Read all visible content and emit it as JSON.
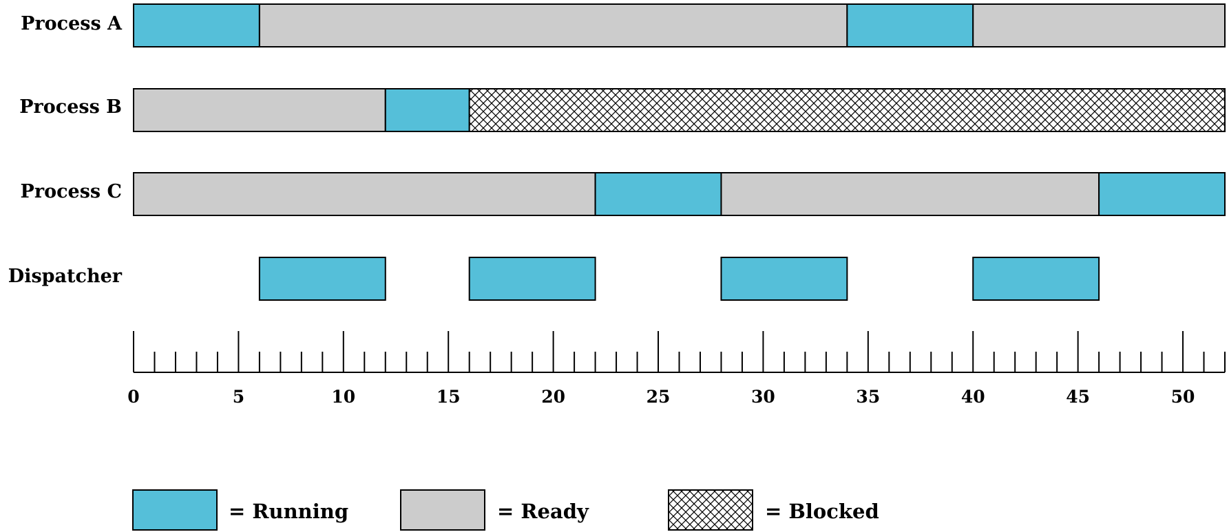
{
  "chart_data": {
    "type": "timeline",
    "rows": [
      {
        "label": "Process A",
        "segments": [
          {
            "start": 0,
            "end": 6,
            "state": "running"
          },
          {
            "start": 6,
            "end": 34,
            "state": "ready"
          },
          {
            "start": 34,
            "end": 40,
            "state": "running"
          },
          {
            "start": 40,
            "end": 52,
            "state": "ready"
          }
        ]
      },
      {
        "label": "Process B",
        "segments": [
          {
            "start": 0,
            "end": 12,
            "state": "ready"
          },
          {
            "start": 12,
            "end": 16,
            "state": "running"
          },
          {
            "start": 16,
            "end": 52,
            "state": "blocked"
          }
        ]
      },
      {
        "label": "Process C",
        "segments": [
          {
            "start": 0,
            "end": 22,
            "state": "ready"
          },
          {
            "start": 22,
            "end": 28,
            "state": "running"
          },
          {
            "start": 28,
            "end": 46,
            "state": "ready"
          },
          {
            "start": 46,
            "end": 52,
            "state": "running"
          }
        ]
      },
      {
        "label": "Dispatcher",
        "segments": [
          {
            "start": 6,
            "end": 12,
            "state": "running"
          },
          {
            "start": 16,
            "end": 22,
            "state": "running"
          },
          {
            "start": 28,
            "end": 34,
            "state": "running"
          },
          {
            "start": 40,
            "end": 46,
            "state": "running"
          }
        ]
      }
    ],
    "x_axis": {
      "min": 0,
      "max": 52,
      "major_ticks": [
        0,
        5,
        10,
        15,
        20,
        25,
        30,
        35,
        40,
        45,
        50
      ],
      "minor_step": 1,
      "tick_labels": [
        "0",
        "5",
        "10",
        "15",
        "20",
        "25",
        "30",
        "35",
        "40",
        "45",
        "50"
      ]
    },
    "legend": [
      {
        "state": "running",
        "label": "= Running"
      },
      {
        "state": "ready",
        "label": "= Ready"
      },
      {
        "state": "blocked",
        "label": "= Blocked"
      }
    ],
    "colors": {
      "running": "#55bfd9",
      "ready": "#cccccc",
      "blocked_background": "#ffffff",
      "blocked_hatch": "#000000",
      "outline": "#000000"
    }
  }
}
